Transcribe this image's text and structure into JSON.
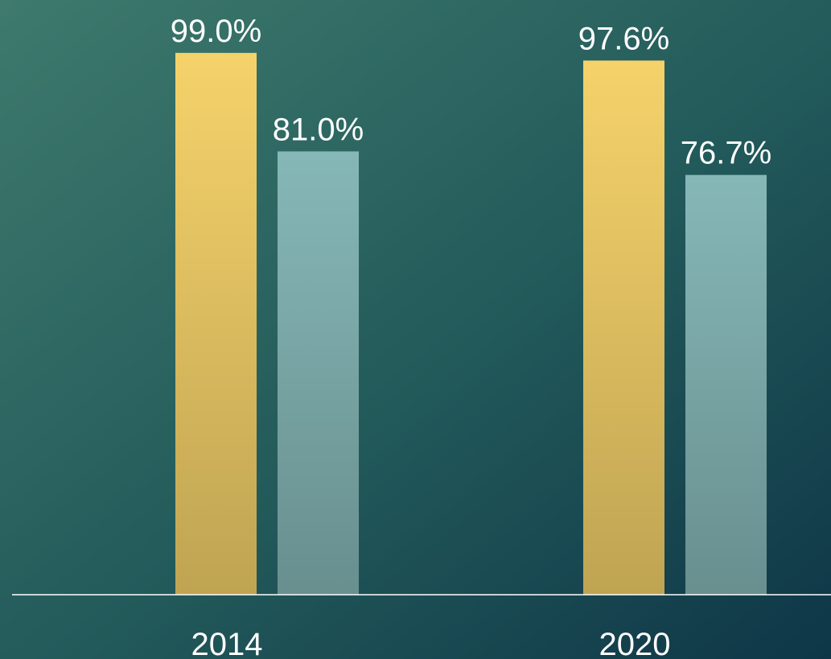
{
  "chart_data": {
    "type": "bar",
    "categories": [
      "2014",
      "2020"
    ],
    "series": [
      {
        "color": "#f5d26a",
        "values": [
          99.0,
          97.6
        ],
        "value_labels": [
          "99.0%",
          "97.6%"
        ]
      },
      {
        "color": "#86b7b7",
        "values": [
          81.0,
          76.7
        ],
        "value_labels": [
          "81.0%",
          "76.7%"
        ]
      }
    ],
    "ylim": [
      0,
      100
    ]
  }
}
